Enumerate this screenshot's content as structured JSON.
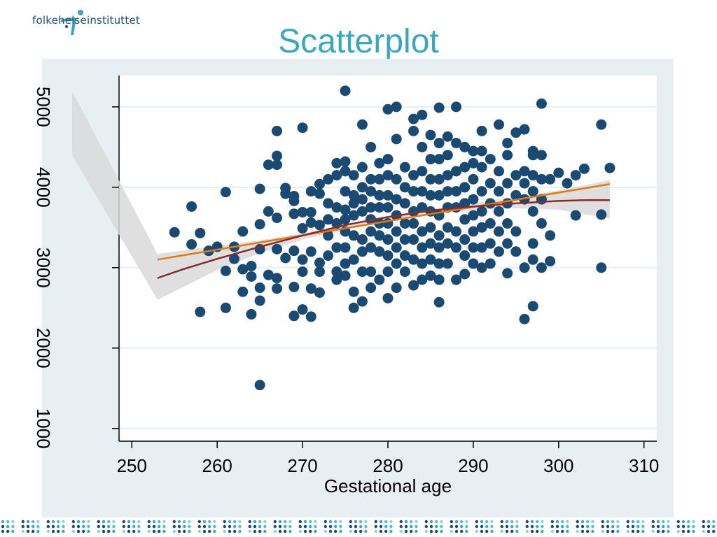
{
  "brand": {
    "name": "folkehelseinstituttet"
  },
  "slide": {
    "title": "Scatterplot"
  },
  "colors": {
    "points": "#1a4a72",
    "linear_fit": "#e07b12",
    "smooth_fit": "#8b2a2a",
    "ci_band": "#d9d9d9",
    "panel_bg": "#e8eff3",
    "title": "#3aa6bf"
  },
  "chart_data": {
    "type": "scatter",
    "xlabel": "Gestational age",
    "ylabel": "",
    "xlim": [
      248.5,
      311.5
    ],
    "ylim": [
      850,
      5390
    ],
    "xticks": [
      250,
      260,
      270,
      280,
      290,
      300,
      310
    ],
    "yticks": [
      1000,
      2000,
      3000,
      4000,
      5000
    ],
    "grid": true,
    "points": [
      [
        255,
        3440
      ],
      [
        257,
        3760
      ],
      [
        257,
        3290
      ],
      [
        258,
        3430
      ],
      [
        258,
        2450
      ],
      [
        259,
        3210
      ],
      [
        260,
        3260
      ],
      [
        261,
        3940
      ],
      [
        261,
        2500
      ],
      [
        261,
        2960
      ],
      [
        262,
        3260
      ],
      [
        262,
        3110
      ],
      [
        263,
        3450
      ],
      [
        263,
        2980
      ],
      [
        263,
        2700
      ],
      [
        264,
        3020
      ],
      [
        264,
        2890
      ],
      [
        264,
        2420
      ],
      [
        265,
        3980
      ],
      [
        265,
        3540
      ],
      [
        265,
        3230
      ],
      [
        265,
        2750
      ],
      [
        265,
        2590
      ],
      [
        265,
        1540
      ],
      [
        266,
        4280
      ],
      [
        266,
        3700
      ],
      [
        266,
        2910
      ],
      [
        267,
        4700
      ],
      [
        267,
        4390
      ],
      [
        267,
        4280
      ],
      [
        267,
        3620
      ],
      [
        267,
        3230
      ],
      [
        267,
        2740
      ],
      [
        267,
        2870
      ],
      [
        268,
        3920
      ],
      [
        268,
        3990
      ],
      [
        268,
        3120
      ],
      [
        269,
        3890
      ],
      [
        269,
        3830
      ],
      [
        269,
        3670
      ],
      [
        269,
        3210
      ],
      [
        269,
        2760
      ],
      [
        269,
        2400
      ],
      [
        270,
        4740
      ],
      [
        270,
        3690
      ],
      [
        270,
        3490
      ],
      [
        270,
        3100
      ],
      [
        270,
        2950
      ],
      [
        270,
        2480
      ],
      [
        271,
        3950
      ],
      [
        271,
        3690
      ],
      [
        271,
        3560
      ],
      [
        271,
        3200
      ],
      [
        271,
        2740
      ],
      [
        271,
        2390
      ],
      [
        272,
        4040
      ],
      [
        272,
        3920
      ],
      [
        272,
        3530
      ],
      [
        272,
        3060
      ],
      [
        272,
        2950
      ],
      [
        272,
        2690
      ],
      [
        273,
        4100
      ],
      [
        273,
        3800
      ],
      [
        273,
        3600
      ],
      [
        273,
        3400
      ],
      [
        273,
        3150
      ],
      [
        274,
        4300
      ],
      [
        274,
        4150
      ],
      [
        274,
        3750
      ],
      [
        274,
        3550
      ],
      [
        274,
        3250
      ],
      [
        274,
        2950
      ],
      [
        274,
        2850
      ],
      [
        275,
        5200
      ],
      [
        275,
        4320
      ],
      [
        275,
        4200
      ],
      [
        275,
        3950
      ],
      [
        275,
        3720
      ],
      [
        275,
        3600
      ],
      [
        275,
        3450
      ],
      [
        275,
        3250
      ],
      [
        275,
        3050
      ],
      [
        275,
        2900
      ],
      [
        276,
        4150
      ],
      [
        276,
        3900
      ],
      [
        276,
        3800
      ],
      [
        276,
        3650
      ],
      [
        276,
        3400
      ],
      [
        276,
        3100
      ],
      [
        276,
        2700
      ],
      [
        276,
        2500
      ],
      [
        277,
        4780
      ],
      [
        277,
        4250
      ],
      [
        277,
        4000
      ],
      [
        277,
        3850
      ],
      [
        277,
        3700
      ],
      [
        277,
        3350
      ],
      [
        277,
        3200
      ],
      [
        277,
        2950
      ],
      [
        277,
        2580
      ],
      [
        278,
        4500
      ],
      [
        278,
        4100
      ],
      [
        278,
        3950
      ],
      [
        278,
        3750
      ],
      [
        278,
        3600
      ],
      [
        278,
        3450
      ],
      [
        278,
        3250
      ],
      [
        278,
        2950
      ],
      [
        278,
        2750
      ],
      [
        279,
        4300
      ],
      [
        279,
        4100
      ],
      [
        279,
        3900
      ],
      [
        279,
        3750
      ],
      [
        279,
        3550
      ],
      [
        279,
        3400
      ],
      [
        279,
        3200
      ],
      [
        279,
        2850
      ],
      [
        280,
        4970
      ],
      [
        280,
        4350
      ],
      [
        280,
        4150
      ],
      [
        280,
        3900
      ],
      [
        280,
        3750
      ],
      [
        280,
        3550
      ],
      [
        280,
        3350
      ],
      [
        280,
        3150
      ],
      [
        280,
        2950
      ],
      [
        280,
        2620
      ],
      [
        281,
        5000
      ],
      [
        281,
        4600
      ],
      [
        281,
        4100
      ],
      [
        281,
        3850
      ],
      [
        281,
        3650
      ],
      [
        281,
        3450
      ],
      [
        281,
        3250
      ],
      [
        281,
        3050
      ],
      [
        281,
        2750
      ],
      [
        282,
        4250
      ],
      [
        282,
        4000
      ],
      [
        282,
        3800
      ],
      [
        282,
        3550
      ],
      [
        282,
        3350
      ],
      [
        282,
        3150
      ],
      [
        282,
        2950
      ],
      [
        283,
        4850
      ],
      [
        283,
        4700
      ],
      [
        283,
        4150
      ],
      [
        283,
        3950
      ],
      [
        283,
        3700
      ],
      [
        283,
        3550
      ],
      [
        283,
        3350
      ],
      [
        283,
        3100
      ],
      [
        283,
        2780
      ],
      [
        284,
        4900
      ],
      [
        284,
        4500
      ],
      [
        284,
        4200
      ],
      [
        284,
        3950
      ],
      [
        284,
        3750
      ],
      [
        284,
        3450
      ],
      [
        284,
        3250
      ],
      [
        284,
        3050
      ],
      [
        284,
        2850
      ],
      [
        285,
        4650
      ],
      [
        285,
        4350
      ],
      [
        285,
        4100
      ],
      [
        285,
        3900
      ],
      [
        285,
        3700
      ],
      [
        285,
        3500
      ],
      [
        285,
        3300
      ],
      [
        285,
        3100
      ],
      [
        285,
        2900
      ],
      [
        286,
        4990
      ],
      [
        286,
        4550
      ],
      [
        286,
        4350
      ],
      [
        286,
        4100
      ],
      [
        286,
        3900
      ],
      [
        286,
        3650
      ],
      [
        286,
        3400
      ],
      [
        286,
        3250
      ],
      [
        286,
        3050
      ],
      [
        286,
        2850
      ],
      [
        286,
        2570
      ],
      [
        287,
        4630
      ],
      [
        287,
        4400
      ],
      [
        287,
        4150
      ],
      [
        287,
        3950
      ],
      [
        287,
        3750
      ],
      [
        287,
        3500
      ],
      [
        287,
        3300
      ],
      [
        287,
        3050
      ],
      [
        288,
        5000
      ],
      [
        288,
        4550
      ],
      [
        288,
        4200
      ],
      [
        288,
        3950
      ],
      [
        288,
        3750
      ],
      [
        288,
        3450
      ],
      [
        288,
        3250
      ],
      [
        288,
        2850
      ],
      [
        289,
        4500
      ],
      [
        289,
        4250
      ],
      [
        289,
        4000
      ],
      [
        289,
        3800
      ],
      [
        289,
        3600
      ],
      [
        289,
        3350
      ],
      [
        289,
        3150
      ],
      [
        289,
        2920
      ],
      [
        290,
        4450
      ],
      [
        290,
        4300
      ],
      [
        290,
        4100
      ],
      [
        290,
        3850
      ],
      [
        290,
        3650
      ],
      [
        290,
        3450
      ],
      [
        290,
        3250
      ],
      [
        290,
        3050
      ],
      [
        291,
        4700
      ],
      [
        291,
        4450
      ],
      [
        291,
        4250
      ],
      [
        291,
        3950
      ],
      [
        291,
        3700
      ],
      [
        291,
        3500
      ],
      [
        291,
        3250
      ],
      [
        291,
        3000
      ],
      [
        292,
        4350
      ],
      [
        292,
        4050
      ],
      [
        292,
        3800
      ],
      [
        292,
        3550
      ],
      [
        292,
        3300
      ],
      [
        292,
        3050
      ],
      [
        293,
        4780
      ],
      [
        293,
        4200
      ],
      [
        293,
        3950
      ],
      [
        293,
        3700
      ],
      [
        293,
        3450
      ],
      [
        293,
        3200
      ],
      [
        294,
        4550
      ],
      [
        294,
        4400
      ],
      [
        294,
        4050
      ],
      [
        294,
        3800
      ],
      [
        294,
        3550
      ],
      [
        294,
        3300
      ],
      [
        294,
        2930
      ],
      [
        295,
        4680
      ],
      [
        295,
        4150
      ],
      [
        295,
        3900
      ],
      [
        295,
        3450
      ],
      [
        295,
        3200
      ],
      [
        296,
        4720
      ],
      [
        296,
        4200
      ],
      [
        296,
        4050
      ],
      [
        296,
        3850
      ],
      [
        296,
        3000
      ],
      [
        296,
        2360
      ],
      [
        297,
        4450
      ],
      [
        297,
        4400
      ],
      [
        297,
        4150
      ],
      [
        297,
        3950
      ],
      [
        297,
        3700
      ],
      [
        297,
        3300
      ],
      [
        297,
        3100
      ],
      [
        297,
        2520
      ],
      [
        298,
        5040
      ],
      [
        298,
        4400
      ],
      [
        298,
        4100
      ],
      [
        298,
        3850
      ],
      [
        298,
        3550
      ],
      [
        298,
        3000
      ],
      [
        299,
        4100
      ],
      [
        299,
        3400
      ],
      [
        299,
        3080
      ],
      [
        300,
        4180
      ],
      [
        301,
        4050
      ],
      [
        302,
        4150
      ],
      [
        302,
        3650
      ],
      [
        303,
        4230
      ],
      [
        305,
        4780
      ],
      [
        305,
        3660
      ],
      [
        305,
        3000
      ],
      [
        306,
        4240
      ]
    ],
    "series": [
      {
        "type": "linear_fit",
        "x": [
          253,
          306
        ],
        "y": [
          3100,
          4040
        ]
      },
      {
        "type": "smooth_fit",
        "x": [
          253,
          256,
          260,
          265,
          270,
          275,
          280,
          285,
          290,
          295,
          300,
          303,
          306
        ],
        "y": [
          2870,
          2980,
          3110,
          3260,
          3400,
          3530,
          3630,
          3710,
          3760,
          3800,
          3830,
          3840,
          3840
        ]
      }
    ],
    "ci_band": {
      "x": [
        243,
        253,
        260,
        265,
        270,
        275,
        280,
        285,
        290,
        295,
        300,
        306
      ],
      "upper": [
        5200,
        3170,
        3270,
        3340,
        3430,
        3520,
        3620,
        3720,
        3800,
        3880,
        3960,
        4090
      ],
      "lower": [
        4400,
        2600,
        2970,
        3180,
        3350,
        3470,
        3580,
        3660,
        3720,
        3740,
        3720,
        3610
      ]
    }
  }
}
